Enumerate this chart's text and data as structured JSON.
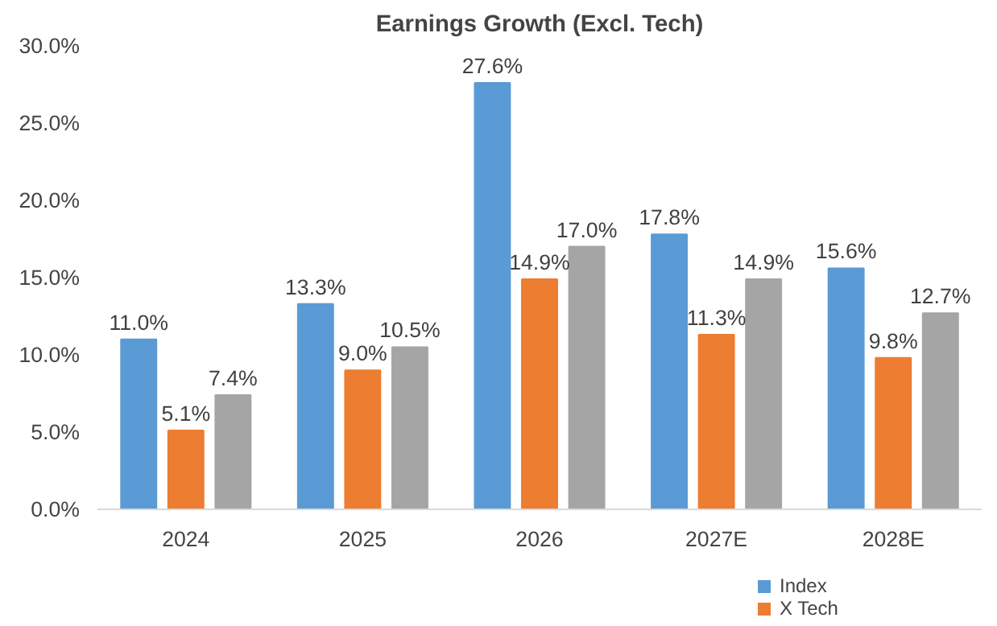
{
  "chart_data": {
    "type": "bar",
    "title": "Earnings Growth (Excl. Tech)",
    "categories": [
      "2024",
      "2025",
      "2026",
      "2027E",
      "2028E"
    ],
    "series": [
      {
        "name": "Index",
        "color": "#5b9bd5",
        "values": [
          11.0,
          13.3,
          27.6,
          17.8,
          15.6
        ],
        "value_labels": [
          "11.0%",
          "13.3%",
          "27.6%",
          "17.8%",
          "15.6%"
        ]
      },
      {
        "name": "X Tech",
        "color": "#ed7d31",
        "values": [
          5.1,
          9.0,
          14.9,
          11.3,
          9.8
        ],
        "value_labels": [
          "5.1%",
          "9.0%",
          "14.9%",
          "11.3%",
          "9.8%"
        ]
      },
      {
        "color": "#a5a5a5",
        "values": [
          7.4,
          10.5,
          17.0,
          14.9,
          12.7
        ],
        "value_labels": [
          "7.4%",
          "10.5%",
          "17.0%",
          "14.9%",
          "12.7%"
        ]
      }
    ],
    "ylim": [
      0,
      30
    ],
    "yticks": [
      {
        "value": 0,
        "label": "0.0%"
      },
      {
        "value": 5,
        "label": "5.0%"
      },
      {
        "value": 10,
        "label": "10.0%"
      },
      {
        "value": 15,
        "label": "15.0%"
      },
      {
        "value": 20,
        "label": "20.0%"
      },
      {
        "value": 25,
        "label": "25.0%"
      },
      {
        "value": 30,
        "label": "30.0%"
      }
    ],
    "grid": false,
    "legend": "bottom right"
  }
}
